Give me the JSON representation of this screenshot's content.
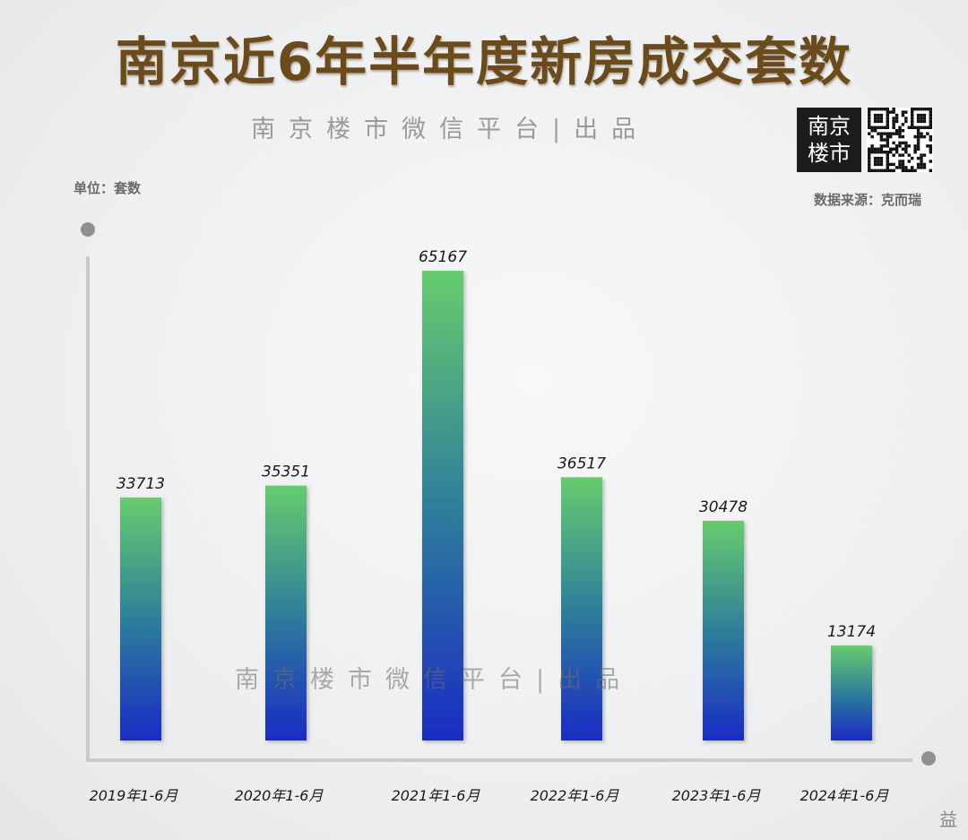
{
  "chart_data": {
    "type": "bar",
    "title": "南京近6年半年度新房成交套数",
    "subtitle": "南京楼市微信平台|出品",
    "unit_label": "单位：套数",
    "source_label": "数据来源：克而瑞",
    "categories": [
      "2019年1-6月",
      "2020年1-6月",
      "2021年1-6月",
      "2022年1-6月",
      "2023年1-6月",
      "2024年1-6月"
    ],
    "values": [
      33713,
      35351,
      65167,
      36517,
      30478,
      13174
    ],
    "ylim": [
      0,
      65167
    ],
    "grid": false,
    "legend": "none",
    "colors": {
      "bar_top": "#66cc6e",
      "bar_mid": "#2e7f9a",
      "bar_bottom": "#1a2bc4",
      "title": "#6b4a1c"
    }
  },
  "logo": {
    "line1": "南京",
    "line2": "楼市"
  },
  "watermark": "南京楼市微信平台|出品",
  "footer_mark": "益"
}
